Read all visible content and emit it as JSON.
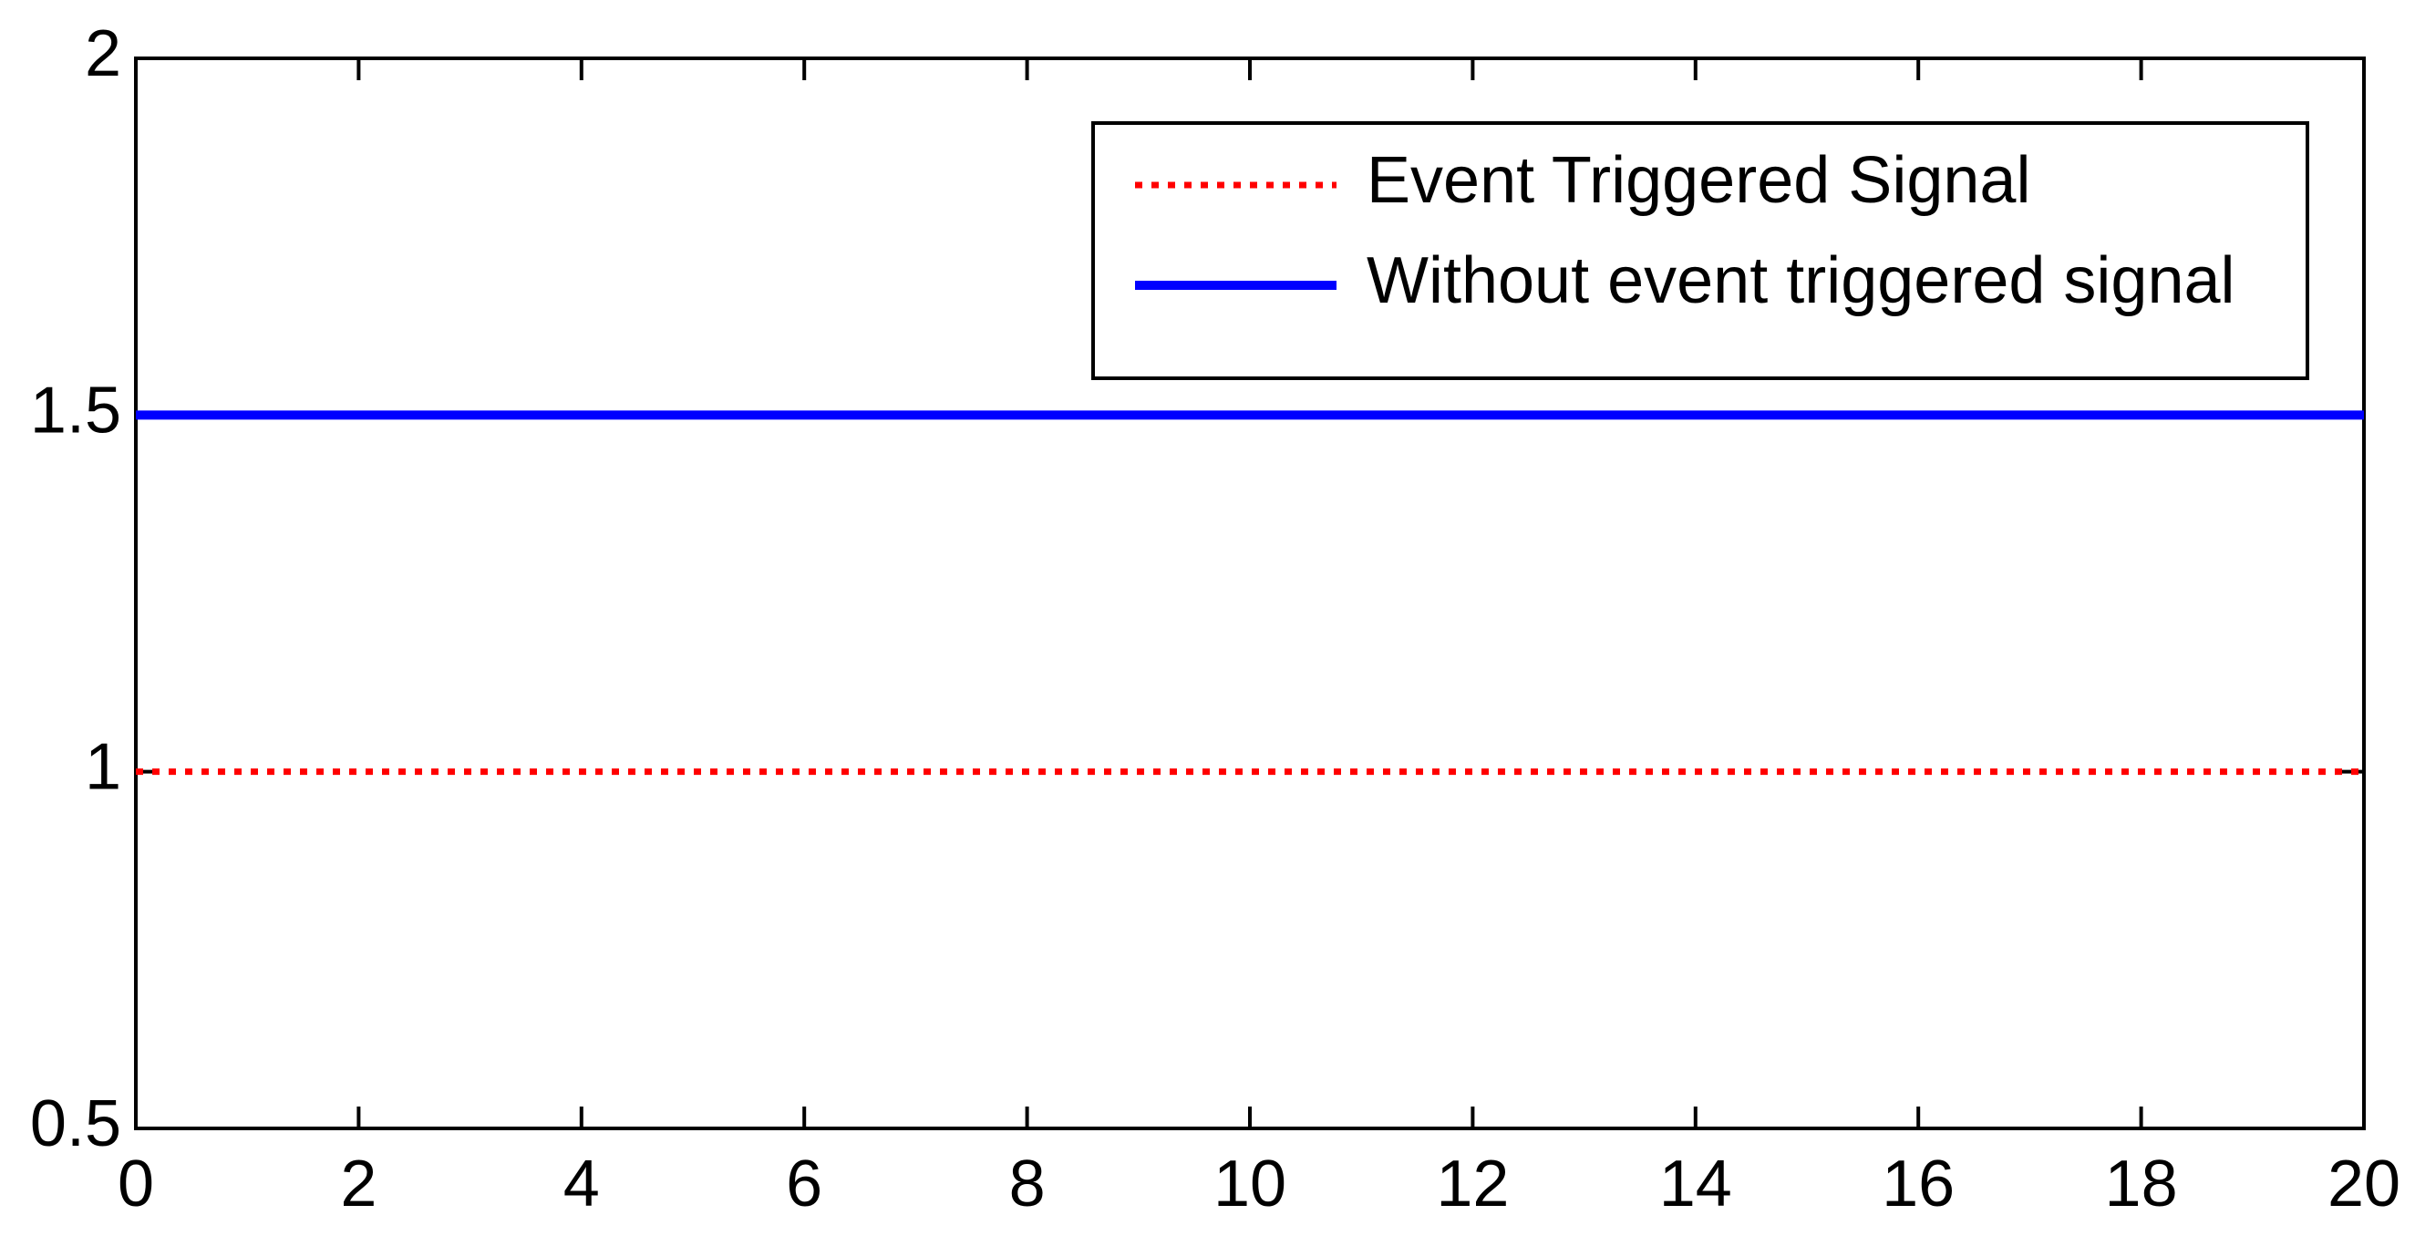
{
  "chart_data": {
    "type": "line",
    "x": [
      0,
      20
    ],
    "series": [
      {
        "name": "Event Triggered Signal",
        "color": "#ff0000",
        "style": "dotted",
        "values": [
          1,
          1
        ]
      },
      {
        "name": "Without event triggered signal",
        "color": "#0000ff",
        "style": "solid",
        "values": [
          1.5,
          1.5
        ]
      }
    ],
    "xlim": [
      0,
      20
    ],
    "xticks": [
      0,
      2,
      4,
      6,
      8,
      10,
      12,
      14,
      16,
      18,
      20
    ],
    "ylim": [
      0.5,
      2
    ],
    "yticks": [
      0.5,
      1,
      1.5,
      2
    ],
    "grid": false,
    "legend": "northeast"
  }
}
